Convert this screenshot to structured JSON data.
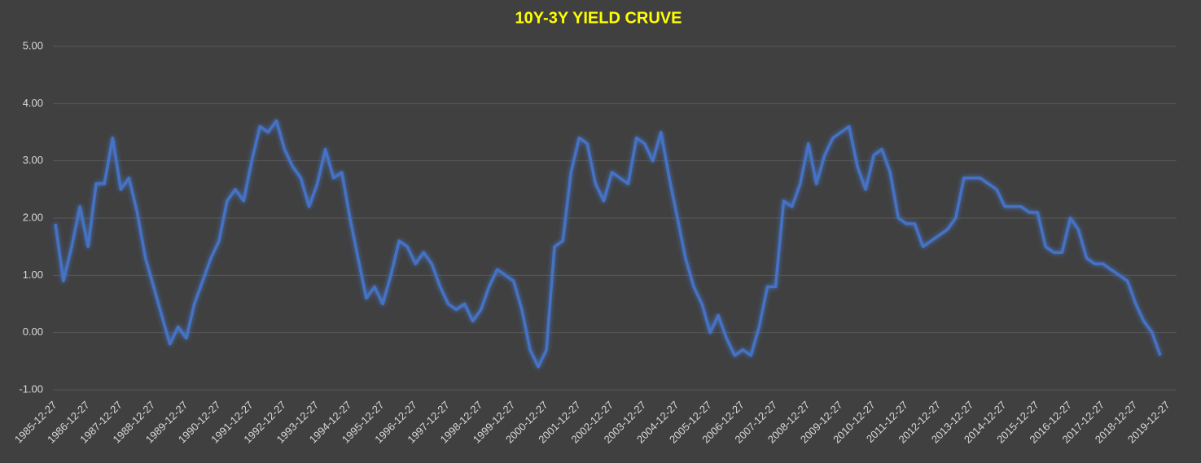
{
  "chart_data": {
    "type": "line",
    "title": "10Y-3Y YIELD CRUVE",
    "color": "#4472c4",
    "grid": true,
    "ylim": [
      -1,
      5
    ],
    "yticks": [
      {
        "value": -1,
        "label": "-1.00"
      },
      {
        "value": 0,
        "label": "0.00"
      },
      {
        "value": 1,
        "label": "1.00"
      },
      {
        "value": 2,
        "label": "2.00"
      },
      {
        "value": 3,
        "label": "3.00"
      },
      {
        "value": 4,
        "label": "4.00"
      },
      {
        "value": 5,
        "label": "5.00"
      }
    ],
    "xticks": [
      "1985-12-27",
      "1986-12-27",
      "1987-12-27",
      "1988-12-27",
      "1989-12-27",
      "1990-12-27",
      "1991-12-27",
      "1992-12-27",
      "1993-12-27",
      "1994-12-27",
      "1995-12-27",
      "1996-12-27",
      "1997-12-27",
      "1998-12-27",
      "1999-12-27",
      "2000-12-27",
      "2001-12-27",
      "2002-12-27",
      "2003-12-27",
      "2004-12-27",
      "2005-12-27",
      "2006-12-27",
      "2007-12-27",
      "2008-12-27",
      "2009-12-27",
      "2010-12-27",
      "2011-12-27",
      "2012-12-27",
      "2013-12-27",
      "2014-12-27",
      "2015-12-27",
      "2016-12-27",
      "2017-12-27",
      "2018-12-27",
      "2019-12-27"
    ],
    "x": [
      "1985-12-27",
      "1986-03-27",
      "1986-06-27",
      "1986-09-27",
      "1986-12-27",
      "1987-03-27",
      "1987-06-27",
      "1987-09-27",
      "1987-12-27",
      "1988-03-27",
      "1988-06-27",
      "1988-09-27",
      "1988-12-27",
      "1989-03-27",
      "1989-06-27",
      "1989-09-27",
      "1989-12-27",
      "1990-03-27",
      "1990-06-27",
      "1990-09-27",
      "1990-12-27",
      "1991-03-27",
      "1991-06-27",
      "1991-09-27",
      "1991-12-27",
      "1992-03-27",
      "1992-06-27",
      "1992-09-27",
      "1992-12-27",
      "1993-03-27",
      "1993-06-27",
      "1993-09-27",
      "1993-12-27",
      "1994-03-27",
      "1994-06-27",
      "1994-09-27",
      "1994-12-27",
      "1995-03-27",
      "1995-06-27",
      "1995-09-27",
      "1995-12-27",
      "1996-03-27",
      "1996-06-27",
      "1996-09-27",
      "1996-12-27",
      "1997-03-27",
      "1997-06-27",
      "1997-09-27",
      "1997-12-27",
      "1998-03-27",
      "1998-06-27",
      "1998-09-27",
      "1998-12-27",
      "1999-03-27",
      "1999-06-27",
      "1999-09-27",
      "1999-12-27",
      "2000-03-27",
      "2000-06-27",
      "2000-09-27",
      "2000-12-27",
      "2001-03-27",
      "2001-06-27",
      "2001-09-27",
      "2001-12-27",
      "2002-03-27",
      "2002-06-27",
      "2002-09-27",
      "2002-12-27",
      "2003-03-27",
      "2003-06-27",
      "2003-09-27",
      "2003-12-27",
      "2004-03-27",
      "2004-06-27",
      "2004-09-27",
      "2004-12-27",
      "2005-03-27",
      "2005-06-27",
      "2005-09-27",
      "2005-12-27",
      "2006-03-27",
      "2006-06-27",
      "2006-09-27",
      "2006-12-27",
      "2007-03-27",
      "2007-06-27",
      "2007-09-27",
      "2007-12-27",
      "2008-03-27",
      "2008-06-27",
      "2008-09-27",
      "2008-12-27",
      "2009-03-27",
      "2009-06-27",
      "2009-09-27",
      "2009-12-27",
      "2010-03-27",
      "2010-06-27",
      "2010-09-27",
      "2010-12-27",
      "2011-03-27",
      "2011-06-27",
      "2011-09-27",
      "2011-12-27",
      "2012-03-27",
      "2012-06-27",
      "2012-09-27",
      "2012-12-27",
      "2013-03-27",
      "2013-06-27",
      "2013-09-27",
      "2013-12-27",
      "2014-03-27",
      "2014-06-27",
      "2014-09-27",
      "2014-12-27",
      "2015-03-27",
      "2015-06-27",
      "2015-09-27",
      "2015-12-27",
      "2016-03-27",
      "2016-06-27",
      "2016-09-27",
      "2016-12-27",
      "2017-03-27",
      "2017-06-27",
      "2017-09-27",
      "2017-12-27",
      "2018-03-27",
      "2018-06-27",
      "2018-09-27",
      "2018-12-27",
      "2019-03-27",
      "2019-06-27",
      "2019-09-27"
    ],
    "values": [
      1.9,
      0.9,
      1.5,
      2.2,
      1.5,
      2.6,
      2.6,
      3.4,
      2.5,
      2.7,
      2.1,
      1.3,
      0.8,
      0.3,
      -0.2,
      0.1,
      -0.1,
      0.5,
      0.9,
      1.3,
      1.6,
      2.3,
      2.5,
      2.3,
      3.0,
      3.6,
      3.5,
      3.7,
      3.2,
      2.9,
      2.7,
      2.2,
      2.6,
      3.2,
      2.7,
      2.8,
      2.0,
      1.3,
      0.6,
      0.8,
      0.5,
      1.0,
      1.6,
      1.5,
      1.2,
      1.4,
      1.2,
      0.8,
      0.5,
      0.4,
      0.5,
      0.2,
      0.4,
      0.8,
      1.1,
      1.0,
      0.9,
      0.4,
      -0.3,
      -0.6,
      -0.3,
      1.5,
      1.6,
      2.8,
      3.4,
      3.3,
      2.6,
      2.3,
      2.8,
      2.7,
      2.6,
      3.4,
      3.3,
      3.0,
      3.5,
      2.7,
      2.0,
      1.3,
      0.8,
      0.5,
      0.0,
      0.3,
      -0.1,
      -0.4,
      -0.3,
      -0.4,
      0.1,
      0.8,
      0.8,
      2.3,
      2.2,
      2.6,
      3.3,
      2.6,
      3.1,
      3.4,
      3.5,
      3.6,
      2.9,
      2.5,
      3.1,
      3.2,
      2.8,
      2.0,
      1.9,
      1.9,
      1.5,
      1.6,
      1.7,
      1.8,
      2.0,
      2.7,
      2.7,
      2.7,
      2.6,
      2.5,
      2.2,
      2.2,
      2.2,
      2.1,
      2.1,
      1.5,
      1.4,
      1.4,
      2.0,
      1.8,
      1.3,
      1.2,
      1.2,
      1.1,
      1.0,
      0.9,
      0.5,
      0.2,
      0.0,
      -0.4
    ]
  }
}
